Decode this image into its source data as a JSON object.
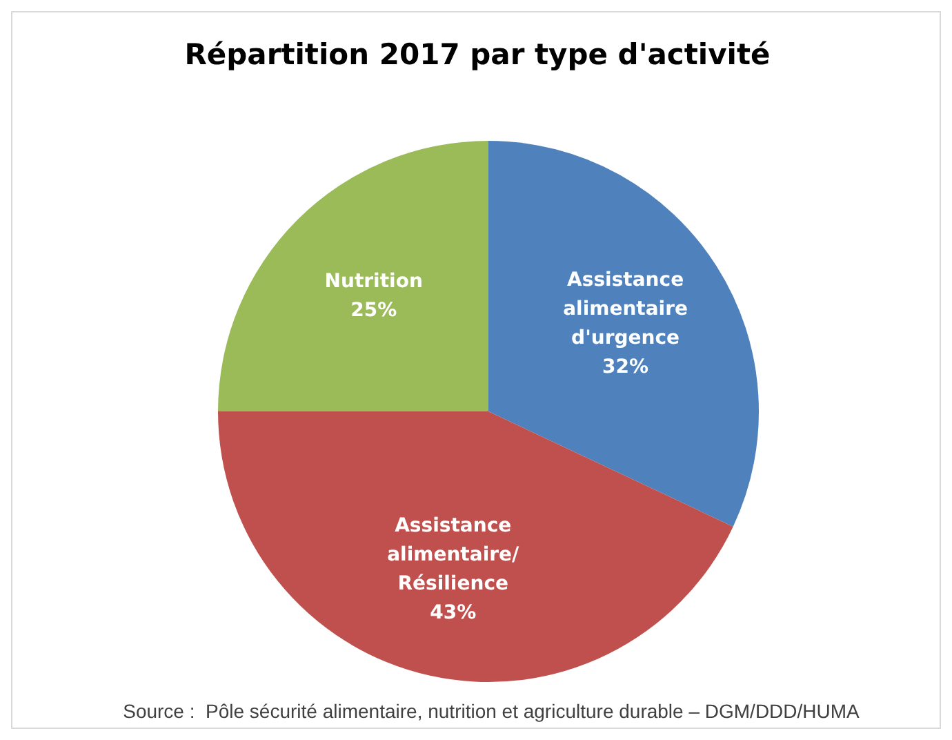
{
  "chart_data": {
    "type": "pie",
    "title": "Répartition 2017 par type d'activité",
    "categories": [
      "Assistance alimentaire d'urgence",
      "Assistance alimentaire/ Résilience",
      "Nutrition"
    ],
    "values": [
      32,
      43,
      25
    ],
    "value_labels": [
      "32%",
      "43%",
      "25%"
    ],
    "colors": [
      "#4f81bd",
      "#c0504d",
      "#9bbb59"
    ],
    "legend": false,
    "annotations": [
      "Source :  Pôle sécurité alimentaire, nutrition et agriculture durable – DGM/DDD/HUMA"
    ]
  }
}
